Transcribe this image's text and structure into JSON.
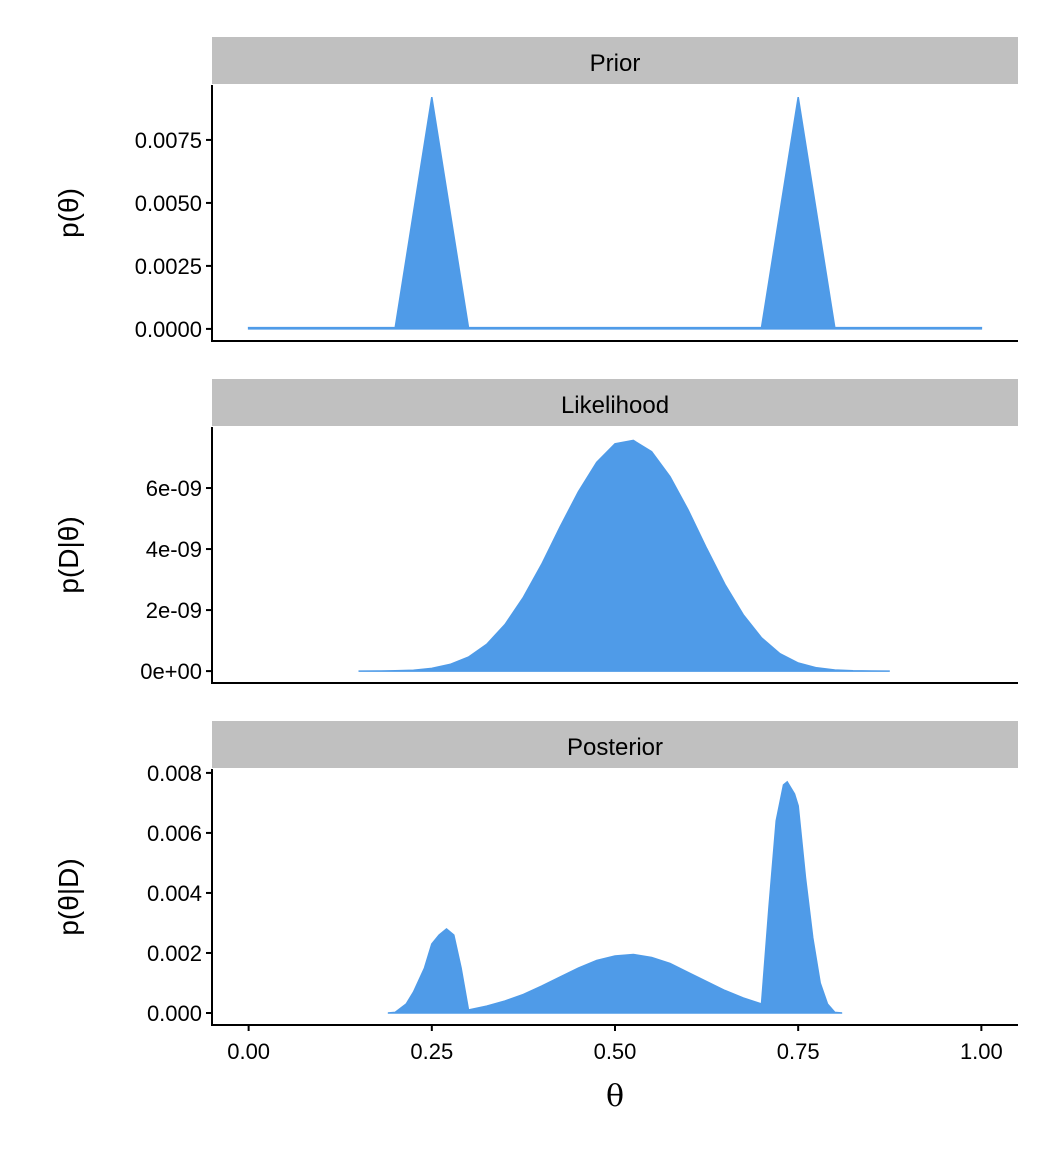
{
  "chart_data": {
    "type": "area",
    "fill_color": "#4F9BE8",
    "strip_color": "#C0C0C0",
    "xlabel": "θ",
    "xlim": [
      -0.05,
      1.05
    ],
    "xticks": [
      0,
      0.25,
      0.5,
      0.75,
      1
    ],
    "xtick_labels": [
      "0.00",
      "0.25",
      "0.50",
      "0.75",
      "1.00"
    ],
    "panels": [
      {
        "title": "Prior",
        "ylabel": "p(θ)",
        "ylim": [
          -0.00048,
          0.00968
        ],
        "yticks": [
          0,
          0.0025,
          0.005,
          0.0075
        ],
        "ytick_labels": [
          "0.0000",
          "0.0025",
          "0.0050",
          "0.0075"
        ],
        "x": [
          0,
          0.2,
          0.25,
          0.3,
          0.7,
          0.75,
          0.8,
          1
        ],
        "y": [
          5e-05,
          5e-05,
          0.0092,
          5e-05,
          5e-05,
          0.0092,
          5e-05,
          5e-05
        ]
      },
      {
        "title": "Likelihood",
        "ylabel": "p(D|θ)",
        "ylim": [
          -3.9e-10,
          8e-09
        ],
        "yticks": [
          0,
          2e-09,
          4e-09,
          6e-09
        ],
        "ytick_labels": [
          "0e+00",
          "2e-09",
          "4e-09",
          "6e-09"
        ],
        "x": [
          0.15,
          0.175,
          0.2,
          0.225,
          0.25,
          0.275,
          0.3,
          0.325,
          0.35,
          0.375,
          0.4,
          0.425,
          0.45,
          0.475,
          0.5,
          0.525,
          0.55,
          0.575,
          0.6,
          0.625,
          0.65,
          0.675,
          0.7,
          0.725,
          0.75,
          0.775,
          0.8,
          0.825,
          0.85,
          0.875
        ],
        "y": [
          3.5e-13,
          2.5e-12,
          9e-12,
          3.1e-11,
          8.9e-11,
          2.2e-10,
          4.6e-10,
          8.8e-10,
          1.53e-09,
          2.42e-09,
          3.5e-09,
          4.72e-09,
          5.88e-09,
          6.84e-09,
          7.45e-09,
          7.56e-09,
          7.19e-09,
          6.37e-09,
          5.27e-09,
          4.02e-09,
          2.84e-09,
          1.85e-09,
          1.09e-09,
          5.7e-10,
          2.65e-10,
          1.07e-10,
          3.6e-11,
          9.8e-12,
          2e-12,
          2e-13
        ]
      },
      {
        "title": "Posterior",
        "ylabel": "p(θ|D)",
        "ylim": [
          -0.0004,
          0.00813
        ],
        "yticks": [
          0,
          0.002,
          0.004,
          0.006,
          0.008
        ],
        "ytick_labels": [
          "0.000",
          "0.002",
          "0.004",
          "0.006",
          "0.008"
        ],
        "x": [
          0.19,
          0.2,
          0.215,
          0.225,
          0.24,
          0.25,
          0.26,
          0.27,
          0.28,
          0.29,
          0.3,
          0.325,
          0.35,
          0.375,
          0.4,
          0.425,
          0.45,
          0.475,
          0.5,
          0.525,
          0.55,
          0.575,
          0.6,
          0.625,
          0.65,
          0.675,
          0.7,
          0.71,
          0.72,
          0.73,
          0.735,
          0.745,
          0.75,
          0.76,
          0.77,
          0.78,
          0.79,
          0.8,
          0.81
        ],
        "y": [
          0,
          2e-05,
          0.0003,
          0.0007,
          0.0015,
          0.0023,
          0.0026,
          0.0028,
          0.0026,
          0.0015,
          0.0001,
          0.00023,
          0.0004,
          0.00062,
          0.0009,
          0.0012,
          0.0015,
          0.00175,
          0.0019,
          0.00195,
          0.00185,
          0.00165,
          0.00135,
          0.00105,
          0.00075,
          0.0005,
          0.0003,
          0.0035,
          0.0064,
          0.0076,
          0.0077,
          0.0073,
          0.0069,
          0.0045,
          0.0025,
          0.001,
          0.0003,
          2e-05,
          0
        ]
      }
    ]
  }
}
